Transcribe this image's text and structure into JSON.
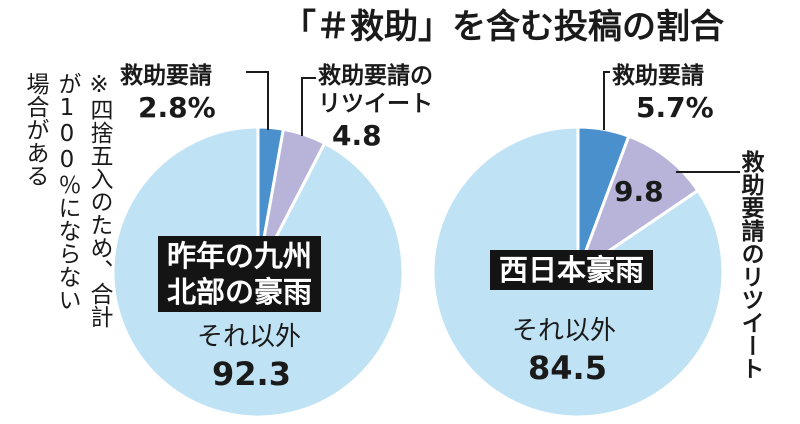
{
  "title": "「＃救助」を含む投稿の割合",
  "note": [
    "※四捨五入のため、合計",
    "が100％にならない",
    "場合がある"
  ],
  "colors": {
    "rescue_request": "#4a90cc",
    "retweet": "#b7b3d9",
    "other": "#bfe3f5",
    "label_box": "#141414"
  },
  "chart_data": [
    {
      "type": "pie",
      "title": "昨年の九州北部の豪雨",
      "title_lines": [
        "昨年の九州",
        "北部の豪雨"
      ],
      "categories": [
        "救助要請",
        "救助要請のリツイート",
        "それ以外"
      ],
      "values": [
        2.8,
        4.8,
        92.3
      ],
      "value_labels": [
        "2.8%",
        "4.8",
        "92.3"
      ],
      "label_lines": {
        "rescue_request": "救助要請",
        "retweet": [
          "救助要請の",
          "リツイート"
        ],
        "other": "それ以外"
      }
    },
    {
      "type": "pie",
      "title": "西日本豪雨",
      "title_lines": [
        "西日本豪雨"
      ],
      "categories": [
        "救助要請",
        "救助要請のリツイート",
        "それ以外"
      ],
      "values": [
        5.7,
        9.8,
        84.5
      ],
      "value_labels": [
        "5.7%",
        "9.8",
        "84.5"
      ],
      "label_lines": {
        "rescue_request": "救助要請",
        "retweet": "救助要請のリツイート",
        "other": "それ以外"
      }
    }
  ]
}
